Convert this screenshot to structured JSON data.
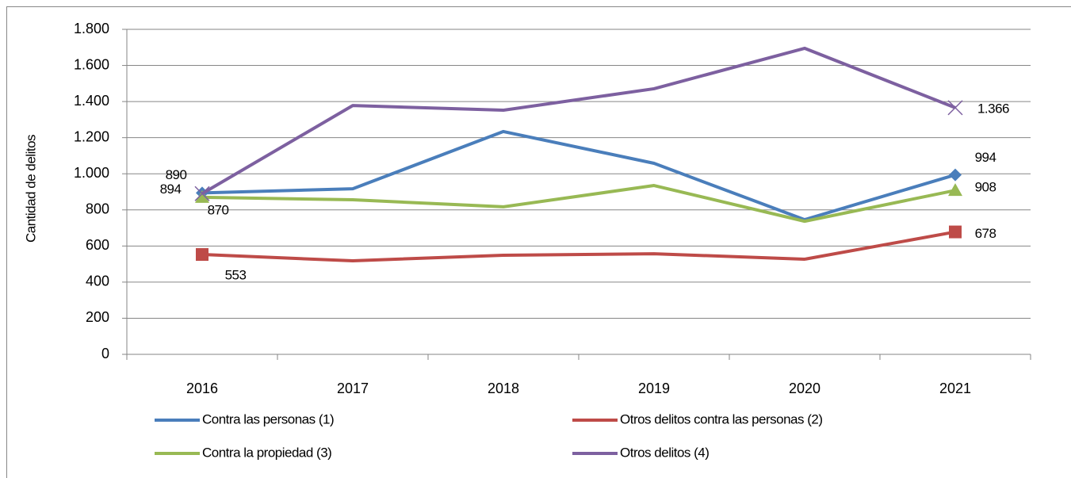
{
  "chart_data": {
    "type": "line",
    "y_label": "Cantidad de delitos",
    "categories": [
      "2016",
      "2017",
      "2018",
      "2019",
      "2020",
      "2021"
    ],
    "series": [
      {
        "name": "Contra las personas (1)",
        "color": "#4a7ebb",
        "marker": "diamond",
        "values": [
          894,
          917,
          1234,
          1058,
          746,
          994
        ],
        "value_labels": [
          "894",
          null,
          null,
          null,
          null,
          "994"
        ]
      },
      {
        "name": "Otros delitos contra las personas (2)",
        "color": "#be4b48",
        "marker": "square",
        "values": [
          553,
          518,
          549,
          557,
          527,
          678
        ],
        "value_labels": [
          "553",
          null,
          null,
          null,
          null,
          "678"
        ]
      },
      {
        "name": "Contra la propiedad (3)",
        "color": "#98b954",
        "marker": "triangle",
        "values": [
          870,
          856,
          817,
          935,
          737,
          908
        ],
        "value_labels": [
          "870",
          null,
          null,
          null,
          null,
          "908"
        ]
      },
      {
        "name": "Otros delitos (4)",
        "color": "#7d60a0",
        "marker": "x",
        "values": [
          890,
          1378,
          1352,
          1471,
          1695,
          1366
        ],
        "value_labels": [
          "890",
          null,
          null,
          null,
          null,
          "1.366"
        ]
      }
    ],
    "ylim": [
      0,
      1800
    ],
    "yticks": [
      0,
      200,
      400,
      600,
      800,
      {
        "value": 1000,
        "label": "1.000"
      },
      {
        "value": 1200,
        "label": "1.200"
      },
      {
        "value": 1400,
        "label": "1.400"
      },
      {
        "value": 1600,
        "label": "1.600"
      },
      {
        "value": 1800,
        "label": "1.800"
      }
    ],
    "grid": true,
    "legend": "bottom"
  }
}
